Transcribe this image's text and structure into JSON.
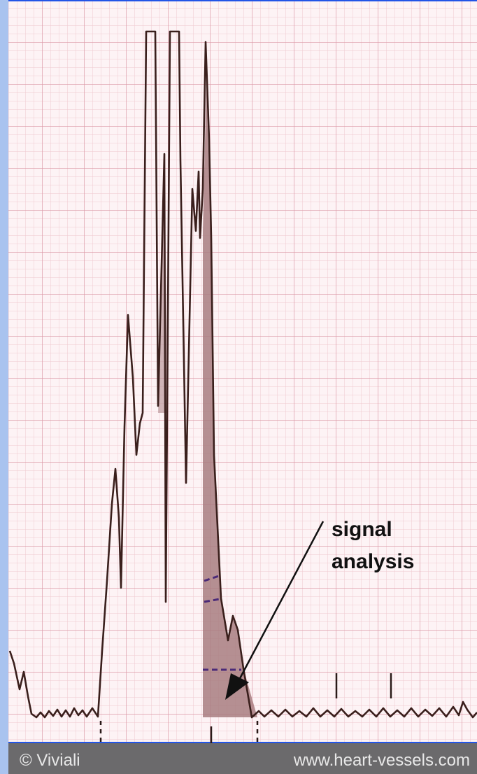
{
  "annotation": {
    "line1": "signal",
    "line2": "analysis"
  },
  "footer": {
    "copyright": "© Viviali",
    "website": "www.heart-vessels.com"
  },
  "colors": {
    "frame": "#2255e6",
    "frame_light": "#a9c3ef",
    "paper": "#fdf3f5",
    "grid_minor": "#f0c8d0",
    "grid_major": "#dc9aa8",
    "trace": "#3a1f1c",
    "highlight": "#a87c80",
    "arrow": "#111111",
    "dash_marks": "#4b2a78",
    "footer_bg": "#6b6a6c"
  },
  "icons": {
    "arrow": "arrow-pointer-icon"
  }
}
